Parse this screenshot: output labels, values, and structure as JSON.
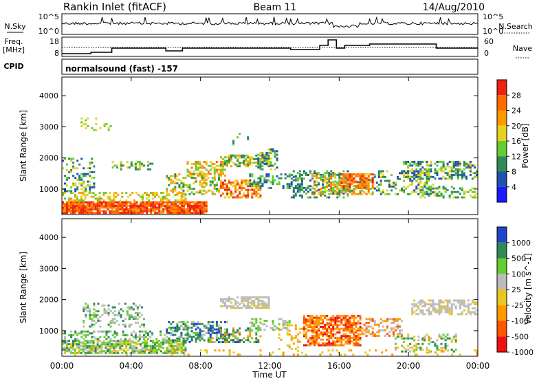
{
  "header": {
    "station": "Rankin Inlet (fitACF)",
    "beam": "Beam 11",
    "date": "14/Aug/2010"
  },
  "nsky_panel": {
    "left_label": "N.Sky",
    "right_label": "N.Search",
    "left_ticks": [
      "10^5",
      "10^0"
    ],
    "right_ticks": [
      "10^5",
      "10^0"
    ]
  },
  "freq_panel": {
    "left_label_1": "Freq.",
    "left_label_2": "[MHz]",
    "right_label": "Nave",
    "left_ticks": [
      "18",
      "8"
    ],
    "right_ticks": [
      "60",
      "0"
    ],
    "cpid_label": "CPID",
    "cpid_text": "normalsound (fast) -157"
  },
  "chart_data": [
    {
      "type": "heatmap",
      "title": "",
      "ylabel": "Slant Range [km]",
      "ylim": [
        180,
        4600
      ],
      "yticks": [
        1000,
        2000,
        3000,
        4000
      ],
      "colorbar": {
        "label": "Power [dB]",
        "ticks": [
          4,
          8,
          12,
          16,
          20,
          24,
          28
        ],
        "colors": [
          "#1a1aff",
          "#2050b0",
          "#2e8b57",
          "#66cc33",
          "#e6d21e",
          "#ff9900",
          "#ff6a00",
          "#ee2211"
        ]
      },
      "x_time_ticks": [
        "00:00",
        "04:00",
        "08:00",
        "12:00",
        "16:00",
        "20:00",
        "00:00"
      ]
    },
    {
      "type": "heatmap",
      "title": "",
      "ylabel": "Slant Range [km]",
      "ylim": [
        180,
        4600
      ],
      "yticks": [
        1000,
        2000,
        3000,
        4000
      ],
      "colorbar": {
        "label": "Velocity [m s^-1]",
        "ticks": [
          1000,
          500,
          100,
          25,
          -25,
          -100,
          -500,
          -1000
        ],
        "colors": [
          "#2244cc",
          "#2e8b57",
          "#66cc33",
          "#bbbbbb",
          "#e6c81e",
          "#ff9900",
          "#ff5500",
          "#ee1111"
        ]
      },
      "x_time_ticks": [
        "00:00",
        "04:00",
        "08:00",
        "12:00",
        "16:00",
        "20:00",
        "00:00"
      ],
      "xlabel": "Time UT"
    }
  ]
}
